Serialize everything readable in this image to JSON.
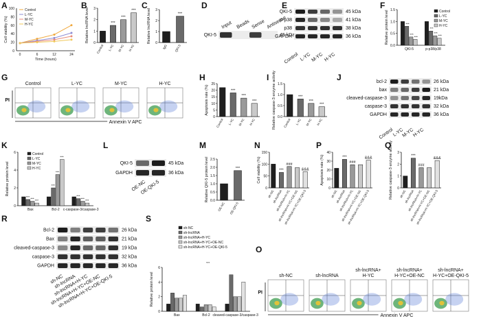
{
  "colors": {
    "control": "#1f1f1f",
    "lyc": "#6a6a6a",
    "myc": "#9a9a9a",
    "hyc": "#c9c9c9",
    "A_control": "#f0a73a",
    "A_lyc": "#8d8cd4",
    "A_myc": "#e88a7a",
    "A_hyc": "#f0c85a"
  },
  "panels": {
    "A": {
      "letter": "A",
      "ylabel": "Cell viability (%)",
      "xlabel": "Time (hours)",
      "xticks": [
        "0",
        "6",
        "12",
        "24"
      ],
      "yticks": [
        "0",
        "20",
        "40",
        "60",
        "80",
        "100"
      ],
      "legend": [
        "Control",
        "L-YC",
        "M-YC",
        "H-YC"
      ],
      "series": [
        [
          18,
          28,
          38,
          60
        ],
        [
          18,
          24,
          30,
          42
        ],
        [
          18,
          22,
          26,
          34
        ],
        [
          18,
          20,
          22,
          26
        ]
      ]
    },
    "B": {
      "letter": "B",
      "ylabel": "Relative lncRNA level",
      "cats": [
        "Control",
        "L-YC",
        "M-YC",
        "H-YC"
      ],
      "values": [
        1.0,
        1.5,
        2.0,
        2.6
      ],
      "ylim": [
        0,
        3
      ],
      "yticks": [
        "0",
        "1",
        "2",
        "3"
      ],
      "sig": [
        "",
        "***",
        "***",
        "***"
      ]
    },
    "C": {
      "letter": "C",
      "ylabel": "Relative lncRNA level",
      "cats": [
        "IgG",
        "QKI-5"
      ],
      "values": [
        1.0,
        2.4
      ],
      "ylim": [
        0,
        3
      ],
      "yticks": [
        "0",
        "1",
        "2",
        "3"
      ],
      "sig": [
        "",
        "***"
      ]
    },
    "D": {
      "letter": "D",
      "row": "QKI-5",
      "kda": "45 kDa",
      "cols": [
        "Input",
        "Beads",
        "Sense",
        "Antisense"
      ]
    },
    "E": {
      "letter": "E",
      "rows": [
        "QKI-5",
        "p-p38",
        "p38",
        "GAPDH"
      ],
      "kdas": [
        "45 kDa",
        "41 kDa",
        "38 kDa",
        "36 kDa"
      ],
      "cols": [
        "Control",
        "L-YC",
        "M-YC",
        "H-YC"
      ]
    },
    "F": {
      "letter": "F",
      "ylabel": "Relative protein level",
      "groups": [
        "QKI-5",
        "p-p38/p38"
      ],
      "legend": [
        "Control",
        "L-YC",
        "M-YC",
        "H-YC"
      ],
      "values": [
        [
          1.0,
          0.8,
          0.35,
          0.25
        ],
        [
          1.0,
          0.6,
          0.4,
          0.3
        ]
      ],
      "yticks": [
        "0.0",
        "0.5",
        "1.0",
        "1.5"
      ],
      "ylim": [
        0,
        1.5
      ]
    },
    "G": {
      "letter": "G",
      "labels": [
        "Control",
        "L-YC",
        "M-YC",
        "H-YC"
      ],
      "ylabel": "PI",
      "xlabel": "Annexin V APC"
    },
    "H": {
      "letter": "H",
      "ylabel": "Apoptosis rate (%)",
      "cats": [
        "Control",
        "L-YC",
        "M-YC",
        "H-YC"
      ],
      "values": [
        22,
        18,
        14,
        10
      ],
      "ylim": [
        0,
        25
      ],
      "yticks": [
        "0",
        "5",
        "10",
        "15",
        "20",
        "25"
      ],
      "sig": [
        "",
        "***",
        "***",
        "***"
      ]
    },
    "I": {
      "letter": "I",
      "ylabel": "Relative caspase-3 enzyme activity",
      "cats": [
        "Control",
        "L-YC",
        "M-YC",
        "H-YC"
      ],
      "values": [
        1.0,
        0.8,
        0.6,
        0.45
      ],
      "ylim": [
        0,
        1.5
      ],
      "yticks": [
        "0.0",
        "0.5",
        "1.0",
        "1.5"
      ],
      "sig": [
        "",
        "***",
        "***",
        "***"
      ]
    },
    "J": {
      "letter": "J",
      "rows": [
        "bcl-2",
        "bax",
        "cleaved-caspase-3",
        "caspase-3",
        "GAPDH"
      ],
      "kdas": [
        "26 kDa",
        "21 kDa",
        "19kDa",
        "32 kDa",
        "36 kDa"
      ],
      "cols": [
        "Control",
        "L-YC",
        "M-YC",
        "H-YC"
      ]
    },
    "K": {
      "letter": "K",
      "ylabel": "Relative protein level",
      "groups": [
        "Bax",
        "Bcl-2",
        "c-caspase-3/caspase-3"
      ],
      "legend": [
        "Control",
        "L-YC",
        "M-YC",
        "H-YC"
      ],
      "values": [
        [
          1.0,
          0.7,
          0.5,
          0.3
        ],
        [
          1.0,
          2.0,
          3.5,
          5.2
        ],
        [
          1.0,
          0.8,
          0.5,
          0.3
        ]
      ],
      "ylim": [
        0,
        6
      ],
      "yticks": [
        "0",
        "2",
        "4",
        "6"
      ]
    },
    "L": {
      "letter": "L",
      "rows": [
        "QKI-5",
        "GAPDH"
      ],
      "kdas": [
        "45 kDa",
        "36 kDa"
      ],
      "cols": [
        "OE-NC",
        "OE-QKI-5"
      ]
    },
    "M": {
      "letter": "M",
      "ylabel": "Relative QKI-5 protein level",
      "cats": [
        "OE-NC",
        "OE-QKI-5"
      ],
      "values": [
        1.0,
        1.8
      ],
      "ylim": [
        0,
        2.5
      ],
      "yticks": [
        "0.0",
        "0.5",
        "1.0",
        "1.5",
        "2.0",
        "2.5"
      ],
      "sig": [
        "",
        "***"
      ]
    },
    "N": {
      "letter": "N",
      "ylabel": "Cell viability (%)",
      "cats": [
        "sh-NC",
        "sh-lncRNA",
        "sh-lncRNA+H-YC",
        "sh-lncRNA+H-YC+OE-NC",
        "sh-lncRNA+H-YC+OE-QKI-5"
      ],
      "values": [
        100,
        65,
        90,
        85,
        68
      ],
      "ylim": [
        0,
        150
      ],
      "yticks": [
        "0",
        "50",
        "100",
        "150"
      ],
      "sig": [
        "",
        "***",
        "###",
        "",
        "&&&"
      ]
    },
    "P": {
      "letter": "P",
      "ylabel": "Apoptosis rate (%)",
      "cats": [
        "sh-NC",
        "sh-lncRNA",
        "sh-lncRNA+H-YC",
        "sh-lncRNA+H-YC+OE-NC",
        "sh-lncRNA+H-YC+OE-QKI-5"
      ],
      "values": [
        22,
        32,
        26,
        26,
        31
      ],
      "ylim": [
        0,
        40
      ],
      "yticks": [
        "0",
        "10",
        "20",
        "30",
        "40"
      ],
      "sig": [
        "",
        "***",
        "###",
        "",
        "&&&"
      ]
    },
    "Q": {
      "letter": "Q",
      "ylabel": "Relative caspase-3 enzyme activity",
      "cats": [
        "sh-NC",
        "sh-lncRNA",
        "sh-lncRNA+H-YC",
        "sh-lncRNA+H-YC+OE-NC",
        "sh-lncRNA+H-YC+OE-QKI-5"
      ],
      "values": [
        1.0,
        2.5,
        1.7,
        1.7,
        2.3
      ],
      "ylim": [
        0,
        3
      ],
      "yticks": [
        "0",
        "1",
        "2",
        "3"
      ],
      "sig": [
        "",
        "***",
        "###",
        "",
        "&&&"
      ]
    },
    "R": {
      "letter": "R",
      "rows": [
        "Bcl-2",
        "Bax",
        "cleaved-caspase-3",
        "caspase-3",
        "GAPDH"
      ],
      "kdas": [
        "26 kDa",
        "21 kDa",
        "19 kDa",
        "32 kDa",
        "36 kDa"
      ],
      "cols": [
        "sh-NC",
        "sh-lncRNA",
        "sh-lncRNA+H-YC",
        "sh-lncRNA+H-YC+OE-NC",
        "sh-lncRNA+H-YC+OE-QKI-5"
      ]
    },
    "S": {
      "letter": "S",
      "ylabel": "Relative protein level",
      "groups": [
        "Bax",
        "Bcl-2",
        "cleaved-caspase-3/caspase-3"
      ],
      "legend": [
        "sh-NC",
        "sh-lncRNA",
        "sh-lncRNA+H-YC",
        "sh-lncRNA+H-YC+OE-NC",
        "sh-lncRNA+H-YC+OE-QKI-5"
      ],
      "values": [
        [
          1.0,
          2.5,
          1.8,
          1.8,
          2.2
        ],
        [
          1.0,
          0.6,
          0.9,
          0.9,
          0.6
        ],
        [
          1.0,
          5.0,
          2.0,
          2.0,
          4.0
        ]
      ],
      "ylim": [
        0,
        6
      ],
      "yticks": [
        "0",
        "2",
        "4",
        "6"
      ]
    },
    "O": {
      "letter": "O",
      "labels": [
        "sh-NC",
        "sh-lncRNA",
        "sh-lncRNA+\nH-YC",
        "sh-lncRNA+\nH-YC+OE-NC",
        "sh-lncRNA+\nH-YC+OE-QKI-5"
      ],
      "ylabel": "PI",
      "xlabel": "Annexin V APC"
    }
  }
}
